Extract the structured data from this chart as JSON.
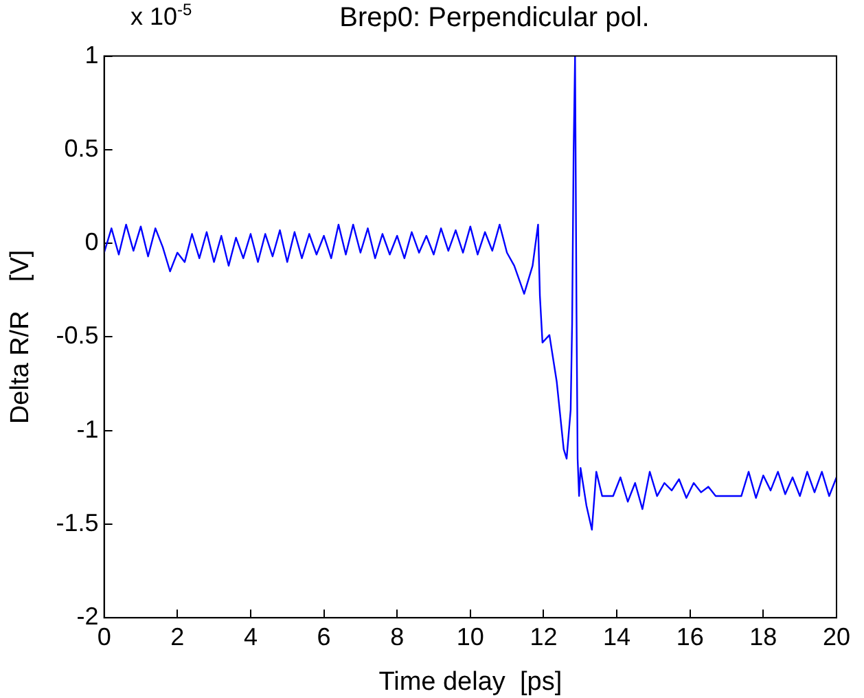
{
  "chart_data": {
    "type": "line",
    "title": "Brep0:  Perpendicular pol.",
    "xlabel": "Time delay  [ps]",
    "ylabel": "Delta R/R    [V]",
    "annotations": [
      "x 10$^{-5}$"
    ],
    "series": [
      {
        "color": "#0000ff",
        "x": [
          0,
          0.2,
          0.4,
          0.6,
          0.8,
          1.0,
          1.2,
          1.4,
          1.6,
          1.8,
          2.0,
          2.2,
          2.4,
          2.6,
          2.8,
          3.0,
          3.2,
          3.4,
          3.6,
          3.8,
          4.0,
          4.2,
          4.4,
          4.6,
          4.8,
          5.0,
          5.2,
          5.4,
          5.6,
          5.8,
          6.0,
          6.2,
          6.4,
          6.6,
          6.8,
          7.0,
          7.2,
          7.4,
          7.6,
          7.8,
          8.0,
          8.2,
          8.4,
          8.6,
          8.8,
          9.0,
          9.2,
          9.4,
          9.6,
          9.8,
          10.0,
          10.2,
          10.4,
          10.6,
          10.8,
          11.0,
          11.2,
          11.47,
          11.7,
          11.85,
          11.9,
          11.97,
          12.16,
          12.36,
          12.55,
          12.63,
          12.74,
          12.78,
          12.82,
          12.86,
          12.9,
          12.93,
          12.97,
          13.01,
          13.17,
          13.32,
          13.44,
          13.6,
          13.9,
          14.1,
          14.3,
          14.5,
          14.7,
          14.9,
          15.1,
          15.3,
          15.5,
          15.7,
          15.9,
          16.1,
          16.3,
          16.5,
          16.7,
          17.0,
          17.4,
          17.6,
          17.8,
          18.0,
          18.2,
          18.4,
          18.6,
          18.8,
          19.0,
          19.2,
          19.4,
          19.6,
          19.8,
          20
        ],
        "values": [
          -0.05,
          0.08,
          -0.06,
          0.1,
          -0.04,
          0.09,
          -0.07,
          0.08,
          -0.02,
          -0.15,
          -0.05,
          -0.1,
          0.05,
          -0.08,
          0.06,
          -0.1,
          0.04,
          -0.12,
          0.03,
          -0.08,
          0.05,
          -0.1,
          0.05,
          -0.07,
          0.07,
          -0.1,
          0.06,
          -0.08,
          0.05,
          -0.06,
          0.04,
          -0.08,
          0.1,
          -0.06,
          0.1,
          -0.05,
          0.08,
          -0.08,
          0.05,
          -0.06,
          0.04,
          -0.08,
          0.06,
          -0.05,
          0.04,
          -0.06,
          0.08,
          -0.04,
          0.07,
          -0.05,
          0.09,
          -0.06,
          0.06,
          -0.04,
          0.1,
          -0.05,
          -0.12,
          -0.27,
          -0.12,
          0.1,
          -0.28,
          -0.53,
          -0.49,
          -0.74,
          -1.1,
          -1.15,
          -0.89,
          -0.43,
          0.48,
          1.0,
          -0.38,
          -1.15,
          -1.35,
          -1.2,
          -1.4,
          -1.53,
          -1.22,
          -1.35,
          -1.35,
          -1.25,
          -1.38,
          -1.28,
          -1.42,
          -1.22,
          -1.35,
          -1.28,
          -1.32,
          -1.26,
          -1.36,
          -1.28,
          -1.33,
          -1.3,
          -1.35,
          -1.35,
          -1.35,
          -1.22,
          -1.36,
          -1.24,
          -1.32,
          -1.22,
          -1.34,
          -1.25,
          -1.35,
          -1.22,
          -1.33,
          -1.22,
          -1.35,
          -1.25
        ]
      }
    ],
    "xlim": [
      0,
      20
    ],
    "xticks": [
      0,
      2,
      4,
      6,
      8,
      10,
      12,
      14,
      16,
      18,
      20
    ],
    "ylim": [
      -2,
      1
    ],
    "yticks": [
      -2,
      -1.5,
      -1,
      -0.5,
      0,
      0.5,
      1
    ],
    "grid": false,
    "legend": false,
    "marker": "none",
    "line_style": "solid"
  }
}
